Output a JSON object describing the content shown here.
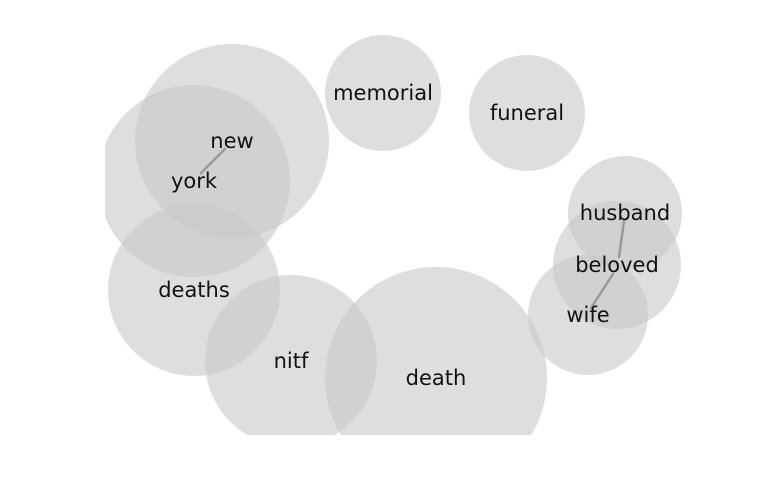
{
  "colors": {
    "bubble_fill": "#c8c8c8",
    "link_stroke": "#999999",
    "text": "#111111",
    "background": "#ffffff"
  },
  "words": {
    "new": "new",
    "york": "york",
    "memorial": "memorial",
    "funeral": "funeral",
    "deaths": "deaths",
    "nitf": "nitf",
    "death": "death",
    "husband": "husband",
    "beloved": "beloved",
    "wife": "wife"
  },
  "links": [
    [
      "new",
      "york"
    ],
    [
      "husband",
      "beloved"
    ],
    [
      "beloved",
      "wife"
    ]
  ]
}
